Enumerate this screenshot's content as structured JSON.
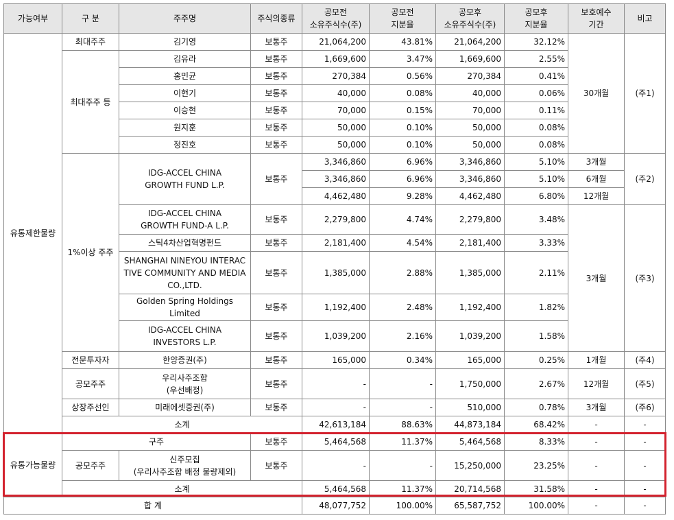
{
  "table": {
    "header": [
      "가능여부",
      "구 분",
      "주주명",
      "주식의종류",
      "공모전\n소유주식수(주)",
      "공모전\n지분율",
      "공모후\n소유주식수(주)",
      "공모후\n지분율",
      "보호예수\n기간",
      "비고"
    ],
    "rows": [
      [
        "유통제한물량",
        "최대주주",
        "김기영",
        "보통주",
        "21,064,200",
        "43.81%",
        "21,064,200",
        "32.12%",
        "30개월",
        "(주1)"
      ],
      [
        "최대주주 등",
        "김유라",
        "보통주",
        "1,669,600",
        "3.47%",
        "1,669,600",
        "2.55%"
      ],
      [
        "홍민균",
        "보통주",
        "270,384",
        "0.56%",
        "270,384",
        "0.41%"
      ],
      [
        "이현기",
        "보통주",
        "40,000",
        "0.08%",
        "40,000",
        "0.06%"
      ],
      [
        "이승현",
        "보통주",
        "70,000",
        "0.15%",
        "70,000",
        "0.11%"
      ],
      [
        "원지훈",
        "보통주",
        "50,000",
        "0.10%",
        "50,000",
        "0.08%"
      ],
      [
        "정진호",
        "보통주",
        "50,000",
        "0.10%",
        "50,000",
        "0.08%"
      ],
      [
        "1%이상 주주",
        "IDG-ACCEL CHINA\nGROWTH FUND L.P.",
        "보통주",
        "3,346,860",
        "6.96%",
        "3,346,860",
        "5.10%",
        "3개월",
        "(주2)"
      ],
      [
        "3,346,860",
        "6.96%",
        "3,346,860",
        "5.10%",
        "6개월"
      ],
      [
        "4,462,480",
        "9.28%",
        "4,462,480",
        "6.80%",
        "12개월"
      ],
      [
        "IDG-ACCEL CHINA\nGROWTH FUND-A L.P.",
        "보통주",
        "2,279,800",
        "4.74%",
        "2,279,800",
        "3.48%",
        "3개월",
        "(주3)"
      ],
      [
        "스틱4차산업혁명펀드",
        "보통주",
        "2,181,400",
        "4.54%",
        "2,181,400",
        "3.33%"
      ],
      [
        "SHANGHAI NINEYOU INTERAC\nTIVE COMMUNITY AND MEDIA\nCO.,LTD.",
        "보통주",
        "1,385,000",
        "2.88%",
        "1,385,000",
        "2.11%"
      ],
      [
        "Golden Spring Holdings Limited",
        "보통주",
        "1,192,400",
        "2.48%",
        "1,192,400",
        "1.82%"
      ],
      [
        "IDG-ACCEL CHINA\nINVESTORS L.P.",
        "보통주",
        "1,039,200",
        "2.16%",
        "1,039,200",
        "1.58%"
      ],
      [
        "전문투자자",
        "한양증권(주)",
        "보통주",
        "165,000",
        "0.34%",
        "165,000",
        "0.25%",
        "1개월",
        "(주4)"
      ],
      [
        "공모주주",
        "우리사주조합\n(우선배정)",
        "보통주",
        "-",
        "-",
        "1,750,000",
        "2.67%",
        "12개월",
        "(주5)"
      ],
      [
        "상장주선인",
        "미래에셋증권(주)",
        "보통주",
        "-",
        "-",
        "510,000",
        "0.78%",
        "3개월",
        "(주6)"
      ],
      [
        "소계",
        "42,613,184",
        "88.63%",
        "44,873,184",
        "68.42%",
        "-",
        "-"
      ],
      [
        "유통가능물량",
        "구주",
        "보통주",
        "5,464,568",
        "11.37%",
        "5,464,568",
        "8.33%",
        "-",
        "-"
      ],
      [
        "공모주주",
        "신주모집\n(우리사주조합 배정 물량제외)",
        "보통주",
        "-",
        "-",
        "15,250,000",
        "23.25%",
        "-",
        "-"
      ],
      [
        "소계",
        "5,464,568",
        "11.37%",
        "20,714,568",
        "31.58%",
        "-",
        "-"
      ],
      [
        "합 계",
        "48,077,752",
        "100.00%",
        "65,587,752",
        "100.00%",
        "-",
        "-"
      ]
    ]
  }
}
